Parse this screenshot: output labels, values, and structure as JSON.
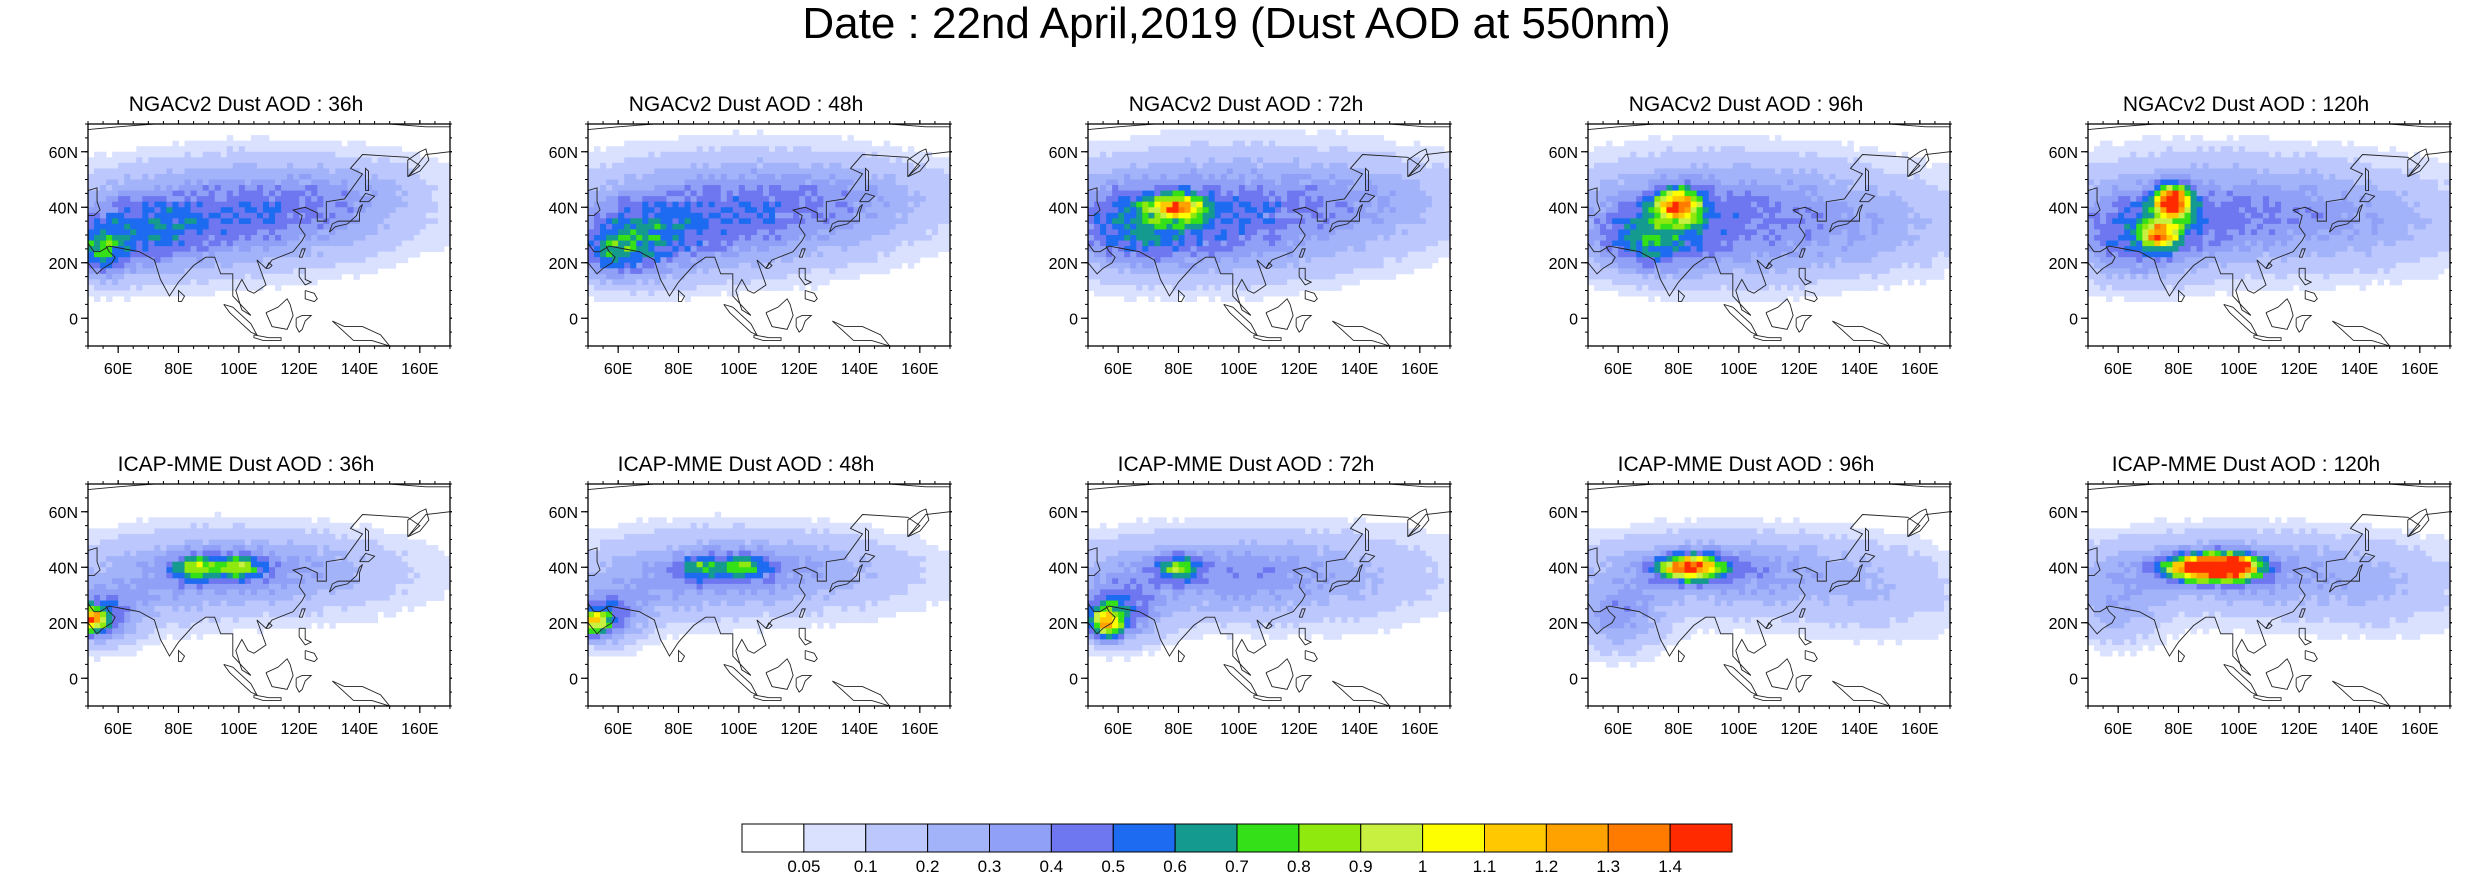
{
  "title": "Date : 22nd April,2019 (Dust AOD at 550nm)",
  "lat_ticks": [
    "60N",
    "40N",
    "20N",
    "0"
  ],
  "lon_ticks": [
    "60E",
    "80E",
    "100E",
    "120E",
    "140E",
    "160E"
  ],
  "panels": [
    {
      "title": "NGACv2 Dust AOD : 36h"
    },
    {
      "title": "NGACv2 Dust AOD : 48h"
    },
    {
      "title": "NGACv2 Dust AOD : 72h"
    },
    {
      "title": "NGACv2 Dust AOD : 96h"
    },
    {
      "title": "NGACv2 Dust AOD : 120h"
    },
    {
      "title": "ICAP-MME Dust AOD : 36h"
    },
    {
      "title": "ICAP-MME Dust AOD : 48h"
    },
    {
      "title": "ICAP-MME Dust AOD : 72h"
    },
    {
      "title": "ICAP-MME Dust AOD : 96h"
    },
    {
      "title": "ICAP-MME Dust AOD : 120h"
    }
  ],
  "colorbar": {
    "labels": [
      "0.05",
      "0.1",
      "0.2",
      "0.3",
      "0.4",
      "0.5",
      "0.6",
      "0.7",
      "0.8",
      "0.9",
      "1",
      "1.1",
      "1.2",
      "1.3",
      "1.4"
    ],
    "colors": [
      "#ffffff",
      "#d9e1ff",
      "#bcc8fd",
      "#a3b3fa",
      "#8fa0f6",
      "#6e76f0",
      "#1d6bf0",
      "#159a8f",
      "#34e017",
      "#8fe80e",
      "#c8f040",
      "#fffe00",
      "#ffc800",
      "#ffa200",
      "#ff7b00",
      "#ff2a00"
    ]
  }
}
